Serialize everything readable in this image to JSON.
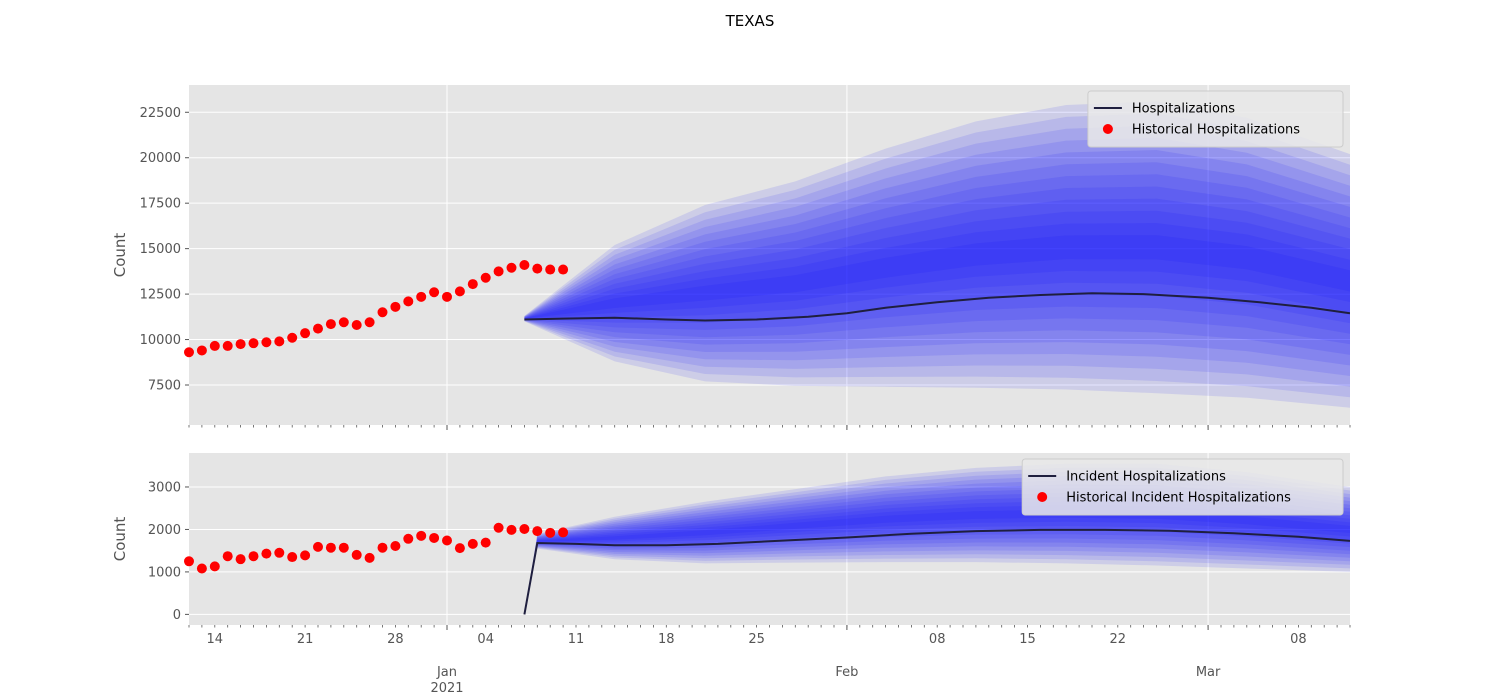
{
  "figure": {
    "title": "TEXAS"
  },
  "colors": {
    "panel_bg": "#e5e5e5",
    "grid": "#ffffff",
    "band": "#0000ff",
    "median_line": "#1f1f3f",
    "historical": "#ff0000",
    "tick_text": "#555555",
    "axis_label": "#555555"
  },
  "x_axis": {
    "major_ticks": [
      {
        "date": "2021-01-01",
        "label": "Jan",
        "sublabel": "2021"
      },
      {
        "date": "2021-02-01",
        "label": "Feb",
        "sublabel": ""
      },
      {
        "date": "2021-03-01",
        "label": "Mar",
        "sublabel": ""
      }
    ],
    "minor_ticks": [
      {
        "date": "2020-12-14",
        "label": "14"
      },
      {
        "date": "2020-12-21",
        "label": "21"
      },
      {
        "date": "2020-12-28",
        "label": "28"
      },
      {
        "date": "2021-01-04",
        "label": "04"
      },
      {
        "date": "2021-01-11",
        "label": "11"
      },
      {
        "date": "2021-01-18",
        "label": "18"
      },
      {
        "date": "2021-01-25",
        "label": "25"
      },
      {
        "date": "2021-02-08",
        "label": "08"
      },
      {
        "date": "2021-02-15",
        "label": "15"
      },
      {
        "date": "2021-02-22",
        "label": "22"
      },
      {
        "date": "2021-03-08",
        "label": "08"
      }
    ],
    "range": [
      "2020-12-12",
      "2021-03-12"
    ]
  },
  "chart_data": [
    {
      "type": "line",
      "ylabel": "Count",
      "ylim": [
        5300,
        24000
      ],
      "yticks": [
        7500,
        10000,
        12500,
        15000,
        17500,
        20000,
        22500
      ],
      "grid": true,
      "legend": {
        "placement": "top-right",
        "entries": [
          "Hospitalizations",
          "Historical Hospitalizations"
        ]
      },
      "series": [
        {
          "name": "Historical Hospitalizations",
          "kind": "scatter",
          "x": [
            "2020-12-12",
            "2020-12-13",
            "2020-12-14",
            "2020-12-15",
            "2020-12-16",
            "2020-12-17",
            "2020-12-18",
            "2020-12-19",
            "2020-12-20",
            "2020-12-21",
            "2020-12-22",
            "2020-12-23",
            "2020-12-24",
            "2020-12-25",
            "2020-12-26",
            "2020-12-27",
            "2020-12-28",
            "2020-12-29",
            "2020-12-30",
            "2020-12-31",
            "2021-01-01",
            "2021-01-02",
            "2021-01-03",
            "2021-01-04",
            "2021-01-05",
            "2021-01-06",
            "2021-01-07",
            "2021-01-08",
            "2021-01-09",
            "2021-01-10"
          ],
          "values": [
            9300,
            9400,
            9650,
            9650,
            9750,
            9800,
            9850,
            9900,
            10100,
            10350,
            10600,
            10850,
            10950,
            10800,
            10950,
            11500,
            11800,
            12100,
            12350,
            12600,
            12350,
            12650,
            13050,
            13400,
            13750,
            13950,
            14100,
            13900,
            13850,
            13850
          ]
        },
        {
          "name": "Hospitalizations",
          "kind": "line",
          "x": [
            "2021-01-07",
            "2021-01-10",
            "2021-01-14",
            "2021-01-18",
            "2021-01-21",
            "2021-01-25",
            "2021-01-29",
            "2021-02-01",
            "2021-02-04",
            "2021-02-08",
            "2021-02-12",
            "2021-02-16",
            "2021-02-20",
            "2021-02-24",
            "2021-03-01",
            "2021-03-05",
            "2021-03-09",
            "2021-03-12"
          ],
          "values": [
            11100,
            11150,
            11200,
            11100,
            11050,
            11100,
            11250,
            11450,
            11750,
            12050,
            12300,
            12450,
            12550,
            12500,
            12300,
            12050,
            11750,
            11450
          ]
        },
        {
          "name": "",
          "kind": "fan",
          "x": [
            "2021-01-07",
            "2021-01-14",
            "2021-01-21",
            "2021-01-28",
            "2021-02-04",
            "2021-02-11",
            "2021-02-18",
            "2021-02-25",
            "2021-03-04",
            "2021-03-12"
          ],
          "lower": [
            11000,
            8800,
            7700,
            7450,
            7400,
            7350,
            7250,
            7050,
            6800,
            6250
          ],
          "upper": [
            11300,
            15200,
            17400,
            18700,
            20500,
            22000,
            22900,
            23100,
            22200,
            20200
          ]
        }
      ]
    },
    {
      "type": "line",
      "ylabel": "Count",
      "ylim": [
        -250,
        3800
      ],
      "yticks": [
        0,
        1000,
        2000,
        3000
      ],
      "grid": true,
      "legend": {
        "placement": "top-right",
        "entries": [
          "Incident Hospitalizations",
          "Historical Incident Hospitalizations"
        ]
      },
      "series": [
        {
          "name": "Historical Incident Hospitalizations",
          "kind": "scatter",
          "x": [
            "2020-12-12",
            "2020-12-13",
            "2020-12-14",
            "2020-12-15",
            "2020-12-16",
            "2020-12-17",
            "2020-12-18",
            "2020-12-19",
            "2020-12-20",
            "2020-12-21",
            "2020-12-22",
            "2020-12-23",
            "2020-12-24",
            "2020-12-25",
            "2020-12-26",
            "2020-12-27",
            "2020-12-28",
            "2020-12-29",
            "2020-12-30",
            "2020-12-31",
            "2021-01-01",
            "2021-01-02",
            "2021-01-03",
            "2021-01-04",
            "2021-01-05",
            "2021-01-06",
            "2021-01-07",
            "2021-01-08",
            "2021-01-09",
            "2021-01-10"
          ],
          "values": [
            1250,
            1080,
            1130,
            1370,
            1300,
            1370,
            1430,
            1450,
            1350,
            1390,
            1590,
            1570,
            1570,
            1400,
            1330,
            1570,
            1610,
            1780,
            1850,
            1800,
            1740,
            1560,
            1660,
            1690,
            2040,
            1990,
            2010,
            1960,
            1920,
            1930
          ]
        },
        {
          "name": "Incident Hospitalizations",
          "kind": "line",
          "x": [
            "2021-01-07",
            "2021-01-08",
            "2021-01-11",
            "2021-01-14",
            "2021-01-18",
            "2021-01-22",
            "2021-01-26",
            "2021-02-01",
            "2021-02-06",
            "2021-02-11",
            "2021-02-16",
            "2021-02-21",
            "2021-02-26",
            "2021-03-03",
            "2021-03-08",
            "2021-03-12"
          ],
          "values": [
            0,
            1680,
            1660,
            1630,
            1630,
            1660,
            1720,
            1810,
            1900,
            1960,
            1990,
            1990,
            1970,
            1910,
            1830,
            1730
          ]
        },
        {
          "name": "",
          "kind": "fan",
          "x": [
            "2021-01-07",
            "2021-01-08",
            "2021-01-14",
            "2021-01-21",
            "2021-01-28",
            "2021-02-04",
            "2021-02-11",
            "2021-02-18",
            "2021-02-25",
            "2021-03-04",
            "2021-03-12"
          ],
          "lower": [
            0,
            1550,
            1300,
            1200,
            1220,
            1230,
            1230,
            1200,
            1150,
            1080,
            1000
          ],
          "upper": [
            0,
            1900,
            2300,
            2650,
            2950,
            3250,
            3450,
            3550,
            3550,
            3350,
            3000
          ]
        }
      ]
    }
  ]
}
